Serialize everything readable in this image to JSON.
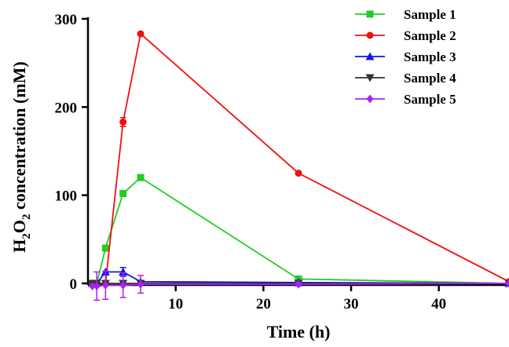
{
  "chart_data": {
    "type": "line",
    "xlabel": "Time (h)",
    "ylabel": {
      "base": "H",
      "sub1": "2",
      "mid": "O",
      "sub2": "2",
      "rest": " concentration (mM)"
    },
    "xlim": [
      0,
      48
    ],
    "ylim": [
      -10,
      300
    ],
    "xticks": [
      10,
      20,
      30,
      40
    ],
    "yticks": [
      0,
      100,
      200,
      300
    ],
    "grid": false,
    "legend_position": "top-right",
    "series": [
      {
        "name": "Sample 1",
        "color": "#22cc22",
        "marker": "square",
        "x": [
          0.5,
          1,
          2,
          4,
          6,
          24,
          48
        ],
        "y": [
          0,
          0,
          40,
          102,
          120,
          5,
          0
        ],
        "err": [
          0,
          0,
          0,
          0,
          0,
          0,
          0
        ]
      },
      {
        "name": "Sample 2",
        "color": "#ee1111",
        "marker": "circle",
        "x": [
          0.5,
          1,
          2,
          4,
          6,
          24,
          48
        ],
        "y": [
          0,
          0,
          0,
          183,
          283,
          125,
          2
        ],
        "err": [
          0,
          0,
          0,
          5,
          0,
          0,
          0
        ]
      },
      {
        "name": "Sample 3",
        "color": "#1111ee",
        "marker": "triangle-up",
        "x": [
          0.5,
          1,
          2,
          4,
          6,
          24,
          48
        ],
        "y": [
          0,
          0,
          13,
          13,
          2,
          1,
          0
        ],
        "err": [
          0,
          0,
          0,
          5,
          0,
          0,
          0
        ]
      },
      {
        "name": "Sample 4",
        "color": "#333333",
        "marker": "triangle-down",
        "x": [
          0.5,
          1,
          2,
          4,
          6,
          24,
          48
        ],
        "y": [
          0,
          0,
          0,
          0,
          0,
          0,
          0
        ],
        "err": [
          0,
          0,
          0,
          0,
          0,
          0,
          0
        ]
      },
      {
        "name": "Sample 5",
        "color": "#aa22ee",
        "marker": "diamond",
        "x": [
          0.5,
          1,
          2,
          4,
          6,
          24,
          48
        ],
        "y": [
          -3,
          -3,
          -2,
          -2,
          -1,
          -1,
          0
        ],
        "err": [
          0,
          16,
          16,
          14,
          10,
          2,
          0
        ]
      }
    ]
  }
}
